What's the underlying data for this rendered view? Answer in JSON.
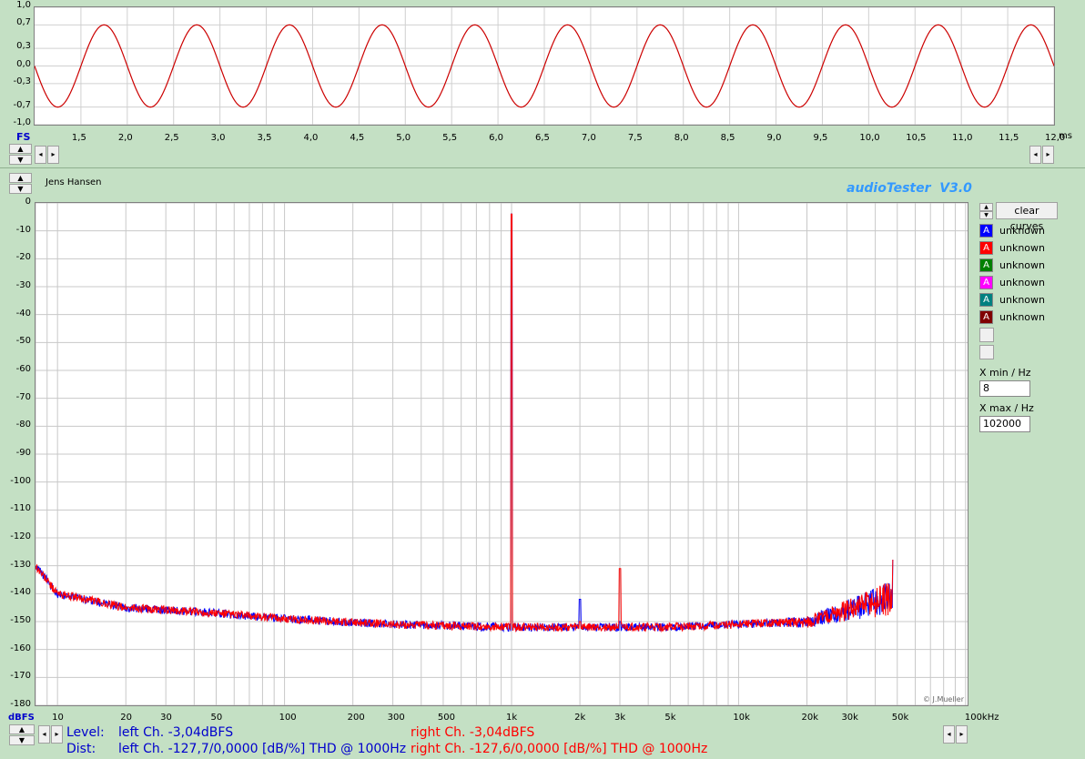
{
  "scope": {
    "y_ticks": [
      "1,0",
      "0,7",
      "0,3",
      "0,0",
      "-0,3",
      "-0,7",
      "-1,0"
    ],
    "x_ticks": [
      "1,5",
      "2,0",
      "2,5",
      "3,0",
      "3,5",
      "4,0",
      "4,5",
      "5,0",
      "5,5",
      "6,0",
      "6,5",
      "7,0",
      "7,5",
      "8,0",
      "8,5",
      "9,0",
      "9,5",
      "10,0",
      "10,5",
      "11,0",
      "11,5",
      "12,0"
    ],
    "x_unit": "ms",
    "fs_label": "FS"
  },
  "header": {
    "user": "Jens Hansen",
    "app_title": "audioTester  V3.0"
  },
  "spectrum": {
    "y_ticks": [
      "0",
      "-10",
      "-20",
      "-30",
      "-40",
      "-50",
      "-60",
      "-70",
      "-80",
      "-90",
      "-100",
      "-110",
      "-120",
      "-130",
      "-140",
      "-150",
      "-160",
      "-170",
      "-180"
    ],
    "x_ticks": [
      "10",
      "20",
      "30",
      "50",
      "100",
      "200",
      "300",
      "500",
      "1k",
      "2k",
      "3k",
      "5k",
      "10k",
      "20k",
      "30k",
      "50k",
      "100kHz"
    ],
    "y_unit": "dBFS",
    "copyright": "© J.Mueller"
  },
  "legend": {
    "clear_label": "clear curves",
    "items": [
      {
        "label": "unknown",
        "color": "#0000ff"
      },
      {
        "label": "unknown",
        "color": "#ff0000"
      },
      {
        "label": "unknown",
        "color": "#008000"
      },
      {
        "label": "unknown",
        "color": "#ff00ff"
      },
      {
        "label": "unknown",
        "color": "#008080"
      },
      {
        "label": "unknown",
        "color": "#800000"
      }
    ],
    "xmin_label": "X min / Hz",
    "xmin_value": "8",
    "xmax_label": "X max / Hz",
    "xmax_value": "102000"
  },
  "status": {
    "level_label": "Level:",
    "dist_label": "Dist:",
    "left_level": "left Ch. -3,04dBFS",
    "right_level": "right Ch. -3,04dBFS",
    "left_dist": "left Ch. -127,7/0,0000 [dB/%] THD @ 1000Hz",
    "right_dist": "right Ch. -127,6/0,0000 [dB/%] THD @ 1000Hz"
  },
  "chart_data": [
    {
      "type": "line",
      "x_range_ms": [
        1.0,
        12.0
      ],
      "ylim": [
        -1.0,
        1.0
      ],
      "series": [
        {
          "values_desc": "sine wave, 1000 Hz, amplitude 0.7",
          "frequency_hz": 1000,
          "amplitude": 0.7,
          "color": "#cc0000"
        }
      ]
    },
    {
      "type": "line",
      "xscale": "log",
      "xlim": [
        8,
        102000
      ],
      "ylim": [
        -180,
        0
      ],
      "ylabel": "dBFS",
      "peaks": [
        {
          "x": 1000,
          "y": -4
        },
        {
          "x": 2000,
          "y": -142
        },
        {
          "x": 3000,
          "y": -131
        },
        {
          "x": 48000,
          "y": -128
        }
      ],
      "noise_floor": [
        {
          "x": 8,
          "y": -130
        },
        {
          "x": 10,
          "y": -140
        },
        {
          "x": 20,
          "y": -145
        },
        {
          "x": 50,
          "y": -147
        },
        {
          "x": 100,
          "y": -149
        },
        {
          "x": 300,
          "y": -151
        },
        {
          "x": 1000,
          "y": -152
        },
        {
          "x": 5000,
          "y": -152
        },
        {
          "x": 20000,
          "y": -150
        },
        {
          "x": 45000,
          "y": -142
        }
      ],
      "series": [
        {
          "color": "#0000ff"
        },
        {
          "color": "#ff0000"
        }
      ]
    }
  ]
}
